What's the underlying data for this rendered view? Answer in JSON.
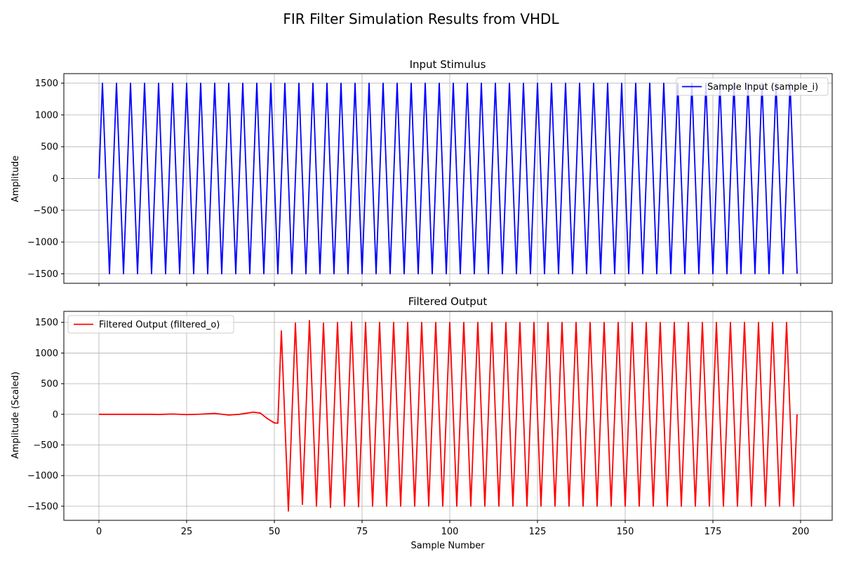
{
  "figure": {
    "suptitle": "FIR Filter Simulation Results from VHDL"
  },
  "chart_data": [
    {
      "type": "line",
      "title": "Input Stimulus",
      "xlabel": "",
      "ylabel": "Amplitude",
      "xlim": [
        -10,
        209
      ],
      "ylim": [
        -1650,
        1650
      ],
      "xticks": [
        0,
        25,
        50,
        75,
        100,
        125,
        150,
        175,
        200
      ],
      "xtick_labels_shown": false,
      "yticks": [
        1500,
        1000,
        500,
        0,
        -500,
        -1000,
        -1500
      ],
      "ytick_labels": [
        "1500",
        "1000",
        "500",
        "0",
        "−500",
        "−1000",
        "−1500"
      ],
      "grid": true,
      "legend": {
        "placement": "upper right",
        "entries": [
          "Sample Input (sample_i)"
        ]
      },
      "series": [
        {
          "name": "Sample Input (sample_i)",
          "color": "#0000ff",
          "x_start": 0,
          "x_end": 199,
          "pattern": "triangle wave: 0 at x=0, then alternating +1500 at odd x ≡ 1 (mod 4) and −1500 at odd x ≡ 3 (mod 4), linear between; ends at −1500 at x=199"
        }
      ]
    },
    {
      "type": "line",
      "title": "Filtered Output",
      "xlabel": "Sample Number",
      "ylabel": "Amplitude (Scaled)",
      "xlim": [
        -10,
        209
      ],
      "ylim": [
        -1730,
        1680
      ],
      "xticks": [
        0,
        25,
        50,
        75,
        100,
        125,
        150,
        175,
        200
      ],
      "xtick_labels": [
        "0",
        "25",
        "50",
        "75",
        "100",
        "125",
        "150",
        "175",
        "200"
      ],
      "yticks": [
        1500,
        1000,
        500,
        0,
        -500,
        -1000,
        -1500
      ],
      "ytick_labels": [
        "1500",
        "1000",
        "500",
        "0",
        "−500",
        "−1000",
        "−1500"
      ],
      "grid": true,
      "legend": {
        "placement": "upper left",
        "entries": [
          "Filtered Output (filtered_o)"
        ]
      },
      "series": [
        {
          "name": "Filtered Output (filtered_o)",
          "color": "#ff0000",
          "key_points": [
            [
              0,
              0
            ],
            [
              15,
              0
            ],
            [
              17,
              -3
            ],
            [
              21,
              5
            ],
            [
              25,
              -5
            ],
            [
              29,
              2
            ],
            [
              33,
              15
            ],
            [
              37,
              -12
            ],
            [
              40,
              0
            ],
            [
              44,
              35
            ],
            [
              46,
              20
            ],
            [
              48,
              -70
            ],
            [
              50,
              -140
            ],
            [
              51,
              -145
            ],
            [
              52,
              1360
            ],
            [
              54,
              -1580
            ],
            [
              56,
              1490
            ],
            [
              58,
              -1470
            ],
            [
              60,
              1530
            ],
            [
              62,
              -1500
            ],
            [
              64,
              1490
            ],
            [
              66,
              -1520
            ],
            [
              68,
              1500
            ],
            [
              70,
              -1500
            ],
            [
              72,
              1510
            ],
            [
              74,
              -1510
            ]
          ],
          "steady_state": {
            "from_x": 74,
            "to_x": 196,
            "period": 4,
            "peak_offset": 2,
            "peak": 1500,
            "trough": -1500,
            "pattern": "peaks at x ≡ 0 (mod 4), troughs at x ≡ 2 (mod 4)"
          },
          "tail_points": [
            [
              196,
              1500
            ],
            [
              198,
              -1500
            ],
            [
              199,
              0
            ]
          ]
        }
      ]
    }
  ]
}
